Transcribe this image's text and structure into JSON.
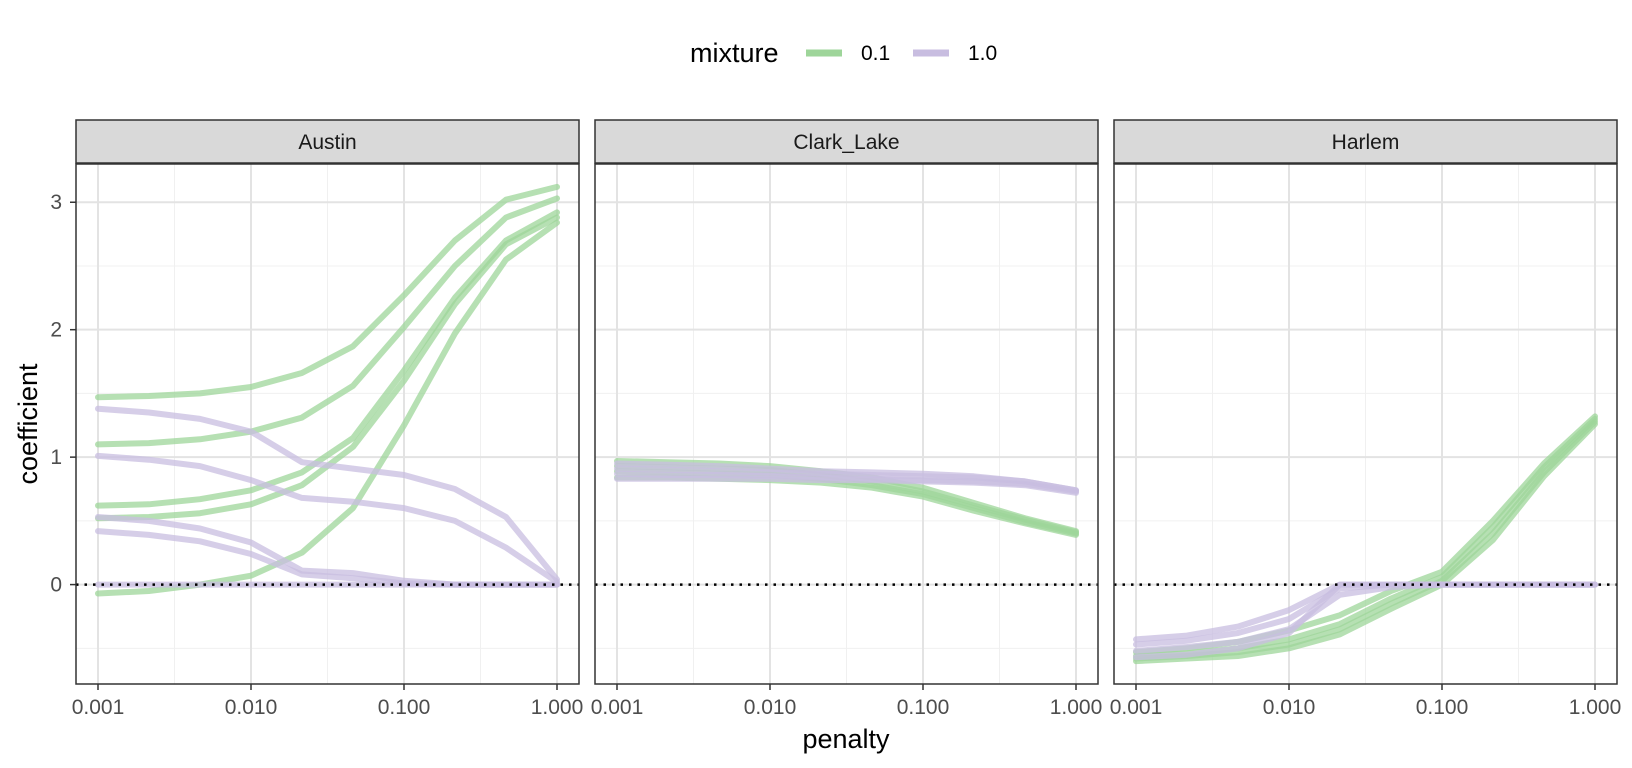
{
  "chart_data": {
    "type": "line",
    "xlabel": "penalty",
    "ylabel": "coefficient",
    "x_scale": "log10",
    "xlim": [
      0.001,
      1.0
    ],
    "ylim": [
      -0.78,
      3.3
    ],
    "x_ticks": [
      0.001,
      0.01,
      0.1,
      1.0
    ],
    "x_tick_labels": [
      "0.001",
      "0.010",
      "0.100",
      "1.000"
    ],
    "y_ticks": [
      0,
      1,
      2,
      3
    ],
    "y_tick_labels": [
      "0",
      "1",
      "2",
      "3"
    ],
    "reference_line": {
      "y": 0,
      "style": "dotted"
    },
    "grid": true,
    "legend": {
      "title": "mixture",
      "position": "top",
      "entries": [
        {
          "label": "0.1",
          "color": "#9ed59a"
        },
        {
          "label": "1.0",
          "color": "#c8bde0"
        }
      ]
    },
    "x": [
      0.001,
      0.00215,
      0.00464,
      0.01,
      0.0215,
      0.0464,
      0.1,
      0.215,
      0.464,
      1.0
    ],
    "panels": [
      {
        "title": "Austin",
        "series": [
          {
            "mixture": "0.1",
            "values": [
              1.47,
              1.48,
              1.5,
              1.55,
              1.66,
              1.87,
              2.27,
              2.7,
              3.02,
              3.12
            ]
          },
          {
            "mixture": "0.1",
            "values": [
              1.1,
              1.11,
              1.14,
              1.2,
              1.31,
              1.56,
              2.02,
              2.5,
              2.88,
              3.03
            ]
          },
          {
            "mixture": "0.1",
            "values": [
              0.62,
              0.63,
              0.67,
              0.74,
              0.88,
              1.15,
              1.68,
              2.25,
              2.7,
              2.92
            ]
          },
          {
            "mixture": "0.1",
            "values": [
              0.52,
              0.53,
              0.56,
              0.63,
              0.78,
              1.08,
              1.6,
              2.2,
              2.67,
              2.88
            ]
          },
          {
            "mixture": "0.1",
            "values": [
              -0.07,
              -0.05,
              0.0,
              0.07,
              0.25,
              0.6,
              1.25,
              1.97,
              2.55,
              2.84
            ]
          },
          {
            "mixture": "1.0",
            "values": [
              1.38,
              1.35,
              1.3,
              1.2,
              0.96,
              0.91,
              0.86,
              0.75,
              0.53,
              0.04
            ]
          },
          {
            "mixture": "1.0",
            "values": [
              1.01,
              0.98,
              0.93,
              0.82,
              0.68,
              0.65,
              0.6,
              0.5,
              0.29,
              0.02
            ]
          },
          {
            "mixture": "1.0",
            "values": [
              0.53,
              0.5,
              0.44,
              0.33,
              0.11,
              0.09,
              0.03,
              0.0,
              0.0,
              0.0
            ]
          },
          {
            "mixture": "1.0",
            "values": [
              0.42,
              0.39,
              0.34,
              0.24,
              0.08,
              0.05,
              0.01,
              0.0,
              0.0,
              0.0
            ]
          },
          {
            "mixture": "1.0",
            "values": [
              0.0,
              0.0,
              0.0,
              0.0,
              0.0,
              0.0,
              0.0,
              0.0,
              0.0,
              0.0
            ]
          }
        ]
      },
      {
        "title": "Clark_Lake",
        "series": [
          {
            "mixture": "0.1",
            "values": [
              0.97,
              0.96,
              0.95,
              0.93,
              0.89,
              0.84,
              0.76,
              0.64,
              0.52,
              0.42
            ]
          },
          {
            "mixture": "0.1",
            "values": [
              0.93,
              0.92,
              0.91,
              0.9,
              0.86,
              0.81,
              0.73,
              0.62,
              0.51,
              0.41
            ]
          },
          {
            "mixture": "0.1",
            "values": [
              0.89,
              0.88,
              0.87,
              0.86,
              0.83,
              0.78,
              0.71,
              0.6,
              0.49,
              0.4
            ]
          },
          {
            "mixture": "0.1",
            "values": [
              0.84,
              0.84,
              0.83,
              0.82,
              0.8,
              0.76,
              0.69,
              0.58,
              0.48,
              0.39
            ]
          },
          {
            "mixture": "1.0",
            "values": [
              0.95,
              0.94,
              0.93,
              0.91,
              0.89,
              0.88,
              0.87,
              0.85,
              0.81,
              0.74
            ]
          },
          {
            "mixture": "1.0",
            "values": [
              0.91,
              0.9,
              0.89,
              0.88,
              0.87,
              0.86,
              0.85,
              0.84,
              0.81,
              0.74
            ]
          },
          {
            "mixture": "1.0",
            "values": [
              0.87,
              0.86,
              0.86,
              0.85,
              0.84,
              0.83,
              0.82,
              0.81,
              0.79,
              0.73
            ]
          },
          {
            "mixture": "1.0",
            "values": [
              0.83,
              0.83,
              0.83,
              0.83,
              0.82,
              0.82,
              0.81,
              0.8,
              0.78,
              0.72
            ]
          }
        ]
      },
      {
        "title": "Harlem",
        "series": [
          {
            "mixture": "0.1",
            "values": [
              -0.53,
              -0.5,
              -0.45,
              -0.36,
              -0.24,
              -0.05,
              0.1,
              0.5,
              0.95,
              1.32
            ]
          },
          {
            "mixture": "0.1",
            "values": [
              -0.56,
              -0.54,
              -0.5,
              -0.43,
              -0.31,
              -0.11,
              0.06,
              0.45,
              0.92,
              1.3
            ]
          },
          {
            "mixture": "0.1",
            "values": [
              -0.58,
              -0.56,
              -0.53,
              -0.47,
              -0.35,
              -0.15,
              0.03,
              0.4,
              0.88,
              1.28
            ]
          },
          {
            "mixture": "0.1",
            "values": [
              -0.6,
              -0.58,
              -0.56,
              -0.5,
              -0.39,
              -0.19,
              0.0,
              0.35,
              0.85,
              1.26
            ]
          },
          {
            "mixture": "1.0",
            "values": [
              -0.43,
              -0.4,
              -0.33,
              -0.2,
              0.0,
              0.0,
              0.0,
              0.0,
              0.0,
              0.0
            ]
          },
          {
            "mixture": "1.0",
            "values": [
              -0.47,
              -0.44,
              -0.38,
              -0.27,
              -0.03,
              0.0,
              0.0,
              0.0,
              0.0,
              0.0
            ]
          },
          {
            "mixture": "1.0",
            "values": [
              -0.52,
              -0.49,
              -0.45,
              -0.35,
              -0.08,
              -0.02,
              0.0,
              0.0,
              0.0,
              0.0
            ]
          },
          {
            "mixture": "1.0",
            "values": [
              -0.57,
              -0.55,
              -0.5,
              -0.38,
              0.0,
              0.0,
              0.0,
              0.0,
              0.0,
              0.0
            ]
          }
        ]
      }
    ]
  }
}
